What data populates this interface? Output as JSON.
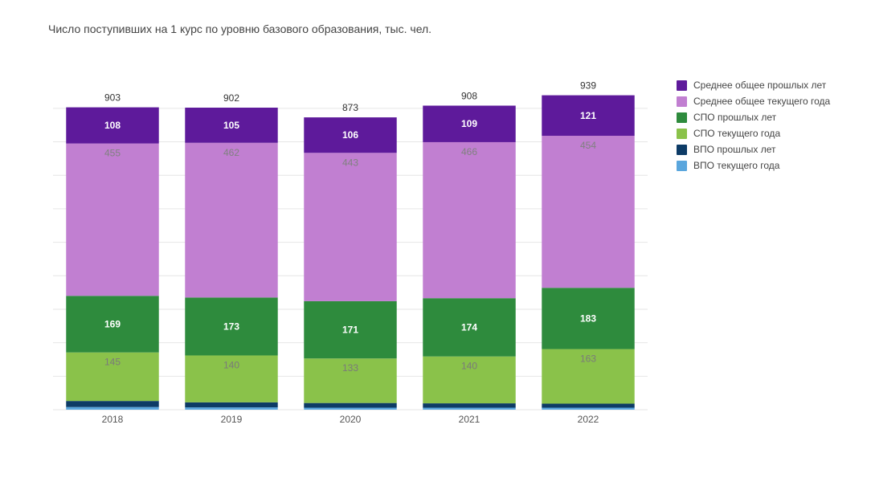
{
  "title": "Число поступивших на 1 курс по уровню базового образования, тыс. чел.",
  "chart": {
    "type": "stacked-bar",
    "background_color": "#ffffff",
    "grid_color": "#e6e6e6",
    "axis_text_color": "#555555",
    "title_fontsize": 14,
    "label_fontsize": 12,
    "axis_fontsize": 11,
    "ylim": [
      0,
      950000
    ],
    "ytick_step": 100000,
    "ytick_labels": [
      "0",
      "0.1M",
      "0.2M",
      "0.3M",
      "0.4M",
      "0.5M",
      "0.6M",
      "0.7M",
      "0.8M",
      "0.9M"
    ],
    "bar_width_ratio": 0.78,
    "categories": [
      "2018",
      "2019",
      "2020",
      "2021",
      "2022"
    ],
    "series": [
      {
        "key": "vpo_cur",
        "name": "ВПО текущего года",
        "color": "#5aa6dd",
        "label_inside": false
      },
      {
        "key": "vpo_past",
        "name": "ВПО прошлых лет",
        "color": "#0d3b66",
        "label_inside": false
      },
      {
        "key": "spo_cur",
        "name": "СПО текущего года",
        "color": "#8ac24a",
        "label_inside": true,
        "label_color": "#7a7a7a"
      },
      {
        "key": "spo_past",
        "name": "СПО прошлых лет",
        "color": "#2e8b3d",
        "label_inside": true,
        "label_color": "#ffffff"
      },
      {
        "key": "sog_cur",
        "name": "Среднее общее текущего года",
        "color": "#c17fd1",
        "label_inside": true,
        "label_color": "#808080"
      },
      {
        "key": "sog_past",
        "name": "Среднее общее прошлых лет",
        "color": "#5e1a9b",
        "label_inside": true,
        "label_color": "#ffffff"
      }
    ],
    "legend_order": [
      "sog_past",
      "sog_cur",
      "spo_past",
      "spo_cur",
      "vpo_past",
      "vpo_cur"
    ],
    "data": {
      "vpo_cur": [
        8,
        7,
        6,
        6,
        6
      ],
      "vpo_past": [
        18,
        15,
        14,
        13,
        12
      ],
      "spo_cur": [
        145,
        140,
        133,
        140,
        163
      ],
      "spo_past": [
        169,
        173,
        171,
        174,
        183
      ],
      "sog_cur": [
        455,
        462,
        443,
        466,
        454
      ],
      "sog_past": [
        108,
        105,
        106,
        109,
        121
      ]
    },
    "totals": [
      903,
      902,
      873,
      908,
      939
    ],
    "show_labels_for": [
      "spo_cur",
      "spo_past",
      "sog_cur",
      "sog_past"
    ]
  }
}
